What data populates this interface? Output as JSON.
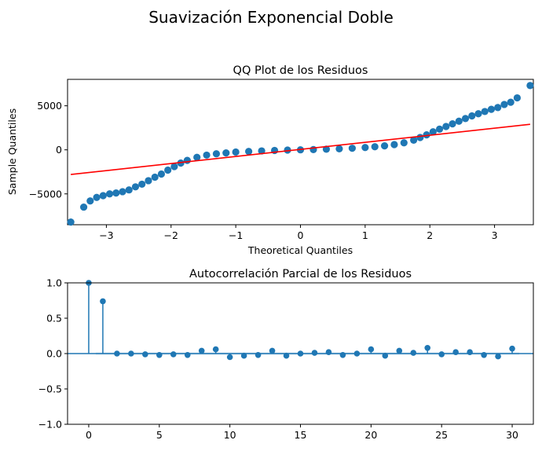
{
  "figure": {
    "suptitle": "Suavización Exponencial Doble"
  },
  "colors": {
    "points": "#1f77b4",
    "ref_line": "#ff0000",
    "conf_band": "#1f77b4",
    "axis": "#000000"
  },
  "chart_data": [
    {
      "type": "scatter",
      "title": "QQ Plot de los Residuos",
      "xlabel": "Theoretical Quantiles",
      "ylabel": "Sample Quantiles",
      "xlim": [
        -3.6,
        3.6
      ],
      "ylim": [
        -8500,
        8000
      ],
      "xticks": [
        -3,
        -2,
        -1,
        0,
        1,
        2,
        3
      ],
      "xtick_labels": [
        "−3",
        "−2",
        "−1",
        "0",
        "1",
        "2",
        "3"
      ],
      "yticks": [
        -5000,
        0,
        5000
      ],
      "ytick_labels": [
        "−5000",
        "0",
        "5000"
      ],
      "grid": false,
      "reference_line": {
        "x": [
          -3.55,
          3.55
        ],
        "y": [
          -2800,
          2900
        ]
      },
      "points": {
        "x": [
          -3.55,
          -3.35,
          -3.25,
          -3.15,
          -3.05,
          -2.95,
          -2.85,
          -2.75,
          -2.65,
          -2.55,
          -2.45,
          -2.35,
          -2.25,
          -2.15,
          -2.05,
          -1.95,
          -1.85,
          -1.75,
          -1.6,
          -1.45,
          -1.3,
          -1.15,
          -1.0,
          -0.8,
          -0.6,
          -0.4,
          -0.2,
          0.0,
          0.2,
          0.4,
          0.6,
          0.8,
          1.0,
          1.15,
          1.3,
          1.45,
          1.6,
          1.75,
          1.85,
          1.95,
          2.05,
          2.15,
          2.25,
          2.35,
          2.45,
          2.55,
          2.65,
          2.75,
          2.85,
          2.95,
          3.05,
          3.15,
          3.25,
          3.35,
          3.55
        ],
        "y": [
          -8200,
          -6500,
          -5800,
          -5400,
          -5200,
          -5000,
          -4900,
          -4750,
          -4550,
          -4200,
          -3900,
          -3500,
          -3100,
          -2750,
          -2300,
          -1900,
          -1500,
          -1200,
          -850,
          -600,
          -450,
          -350,
          -250,
          -180,
          -120,
          -70,
          -30,
          0,
          30,
          70,
          120,
          180,
          260,
          350,
          450,
          600,
          800,
          1100,
          1400,
          1700,
          2050,
          2350,
          2650,
          2950,
          3250,
          3550,
          3850,
          4100,
          4350,
          4600,
          4800,
          5150,
          5400,
          5900,
          7300
        ]
      }
    },
    {
      "type": "stem",
      "title": "Autocorrelación Parcial de los Residuos",
      "xlabel": "",
      "ylabel": "",
      "xlim": [
        -1.5,
        31.5
      ],
      "ylim": [
        -1.0,
        1.0
      ],
      "xticks": [
        0,
        5,
        10,
        15,
        20,
        25,
        30
      ],
      "xtick_labels": [
        "0",
        "5",
        "10",
        "15",
        "20",
        "25",
        "30"
      ],
      "yticks": [
        -1.0,
        -0.5,
        0.0,
        0.5,
        1.0
      ],
      "ytick_labels": [
        "−1.0",
        "−0.5",
        "0.0",
        "0.5",
        "1.0"
      ],
      "grid": false,
      "confidence_band": 0.014,
      "lags": [
        0,
        1,
        2,
        3,
        4,
        5,
        6,
        7,
        8,
        9,
        10,
        11,
        12,
        13,
        14,
        15,
        16,
        17,
        18,
        19,
        20,
        21,
        22,
        23,
        24,
        25,
        26,
        27,
        28,
        29,
        30
      ],
      "values": [
        1.0,
        0.74,
        0.0,
        0.0,
        -0.01,
        -0.02,
        -0.01,
        -0.02,
        0.04,
        0.06,
        -0.05,
        -0.03,
        -0.02,
        0.04,
        -0.03,
        0.0,
        0.01,
        0.02,
        -0.02,
        0.0,
        0.06,
        -0.03,
        0.04,
        0.01,
        0.08,
        -0.01,
        0.02,
        0.02,
        -0.02,
        -0.04,
        0.07
      ]
    }
  ]
}
